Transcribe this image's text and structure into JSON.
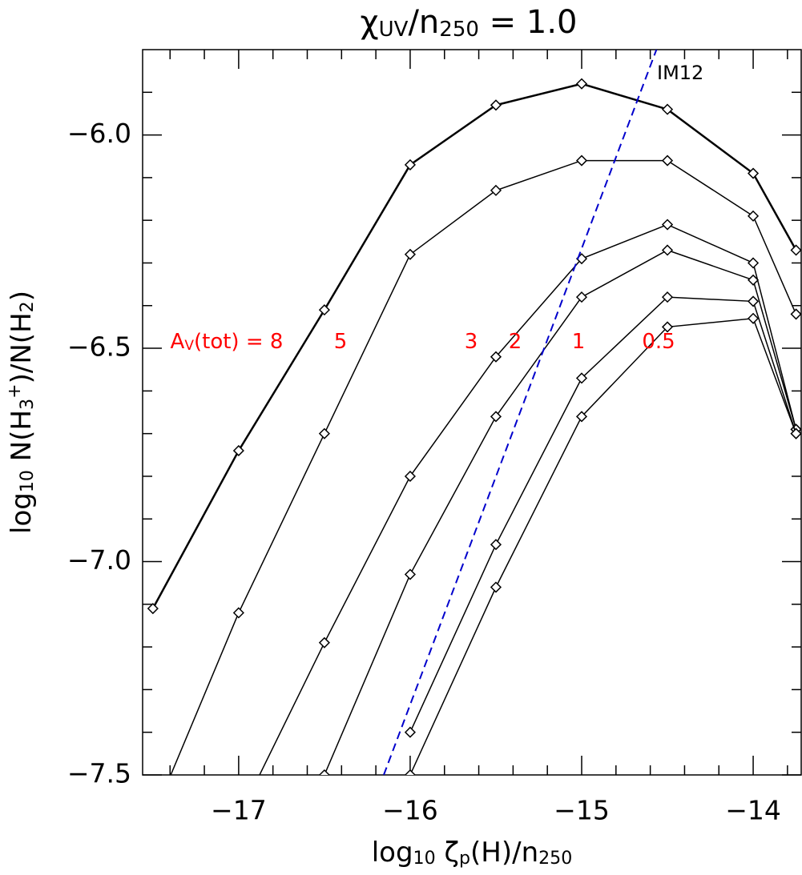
{
  "chart_data": {
    "type": "line",
    "title": [
      {
        "text": "χ"
      },
      {
        "text": "UV",
        "sub": true
      },
      {
        "text": "/n"
      },
      {
        "text": "250",
        "sub": true
      },
      {
        "text": "  =   1.0"
      }
    ],
    "xlabel": [
      {
        "text": "log"
      },
      {
        "text": "10",
        "sub": true
      },
      {
        "text": " ζ"
      },
      {
        "text": "p",
        "sub": true
      },
      {
        "text": "(H)/n"
      },
      {
        "text": "250",
        "sub": true
      }
    ],
    "ylabel": [
      {
        "text": "log"
      },
      {
        "text": "10",
        "sub": true
      },
      {
        "text": " N(H"
      },
      {
        "text": "3",
        "sub": true
      },
      {
        "text": "+",
        "sup": true
      },
      {
        "text": ")/N(H"
      },
      {
        "text": "2",
        "sub": true
      },
      {
        "text": ")"
      }
    ],
    "x": [
      -17.5,
      -17,
      -16.5,
      -16,
      -15.5,
      -15,
      -14.5,
      -14,
      -13.75
    ],
    "series": [
      {
        "color": "#000000",
        "values": [
          -7.11,
          -6.74,
          -6.41,
          -6.07,
          -5.93,
          -5.88,
          -5.94,
          -6.09,
          -6.27
        ]
      },
      {
        "color": "#000000",
        "values": [
          -7.6,
          -7.12,
          -6.7,
          -6.28,
          -6.13,
          -6.06,
          -6.06,
          -6.19,
          -6.42
        ]
      },
      {
        "color": "#000000",
        "values": [
          null,
          -7.6,
          -7.19,
          -6.8,
          -6.52,
          -6.29,
          -6.21,
          -6.3,
          -6.69
        ]
      },
      {
        "color": "#000000",
        "values": [
          null,
          null,
          -7.5,
          -7.03,
          -6.66,
          -6.38,
          -6.27,
          -6.34,
          -6.69
        ]
      },
      {
        "color": "#000000",
        "values": [
          null,
          null,
          null,
          -7.4,
          -6.96,
          -6.57,
          -6.38,
          -6.39,
          -6.7
        ]
      },
      {
        "color": "#000000",
        "values": [
          null,
          null,
          null,
          -7.5,
          -7.06,
          -6.66,
          -6.45,
          -6.43,
          -6.7
        ]
      }
    ],
    "reference_line": {
      "label": "IM12",
      "color": "#0000cc",
      "x": [
        -16.154,
        -14.564
      ],
      "values": [
        -7.5,
        -5.8
      ]
    },
    "annotations": [
      {
        "text": "A",
        "sub": "V",
        "rest": "(tot)  =  8"
      },
      {
        "text": "5"
      },
      {
        "text": "3"
      },
      {
        "text": "2"
      },
      {
        "text": "1"
      },
      {
        "text": "0.5"
      }
    ],
    "annotation_color": "#ff0000",
    "xlim": [
      -17.56,
      -13.72
    ],
    "ylim": [
      -7.5,
      -5.8
    ],
    "xticks": [
      {
        "value": -17,
        "label": "−17"
      },
      {
        "value": -16,
        "label": "−16"
      },
      {
        "value": -15,
        "label": "−15"
      },
      {
        "value": -14,
        "label": "−14"
      }
    ],
    "yticks": [
      {
        "value": -7.5,
        "label": "−7.5"
      },
      {
        "value": -7,
        "label": "−7.0"
      },
      {
        "value": -6.5,
        "label": "−6.5"
      },
      {
        "value": -6,
        "label": "−6.0"
      }
    ],
    "xminorticks": [
      -17.4,
      -17.2,
      -16.8,
      -16.6,
      -16.4,
      -16.2,
      -15.8,
      -15.6,
      -15.4,
      -15.2,
      -14.8,
      -14.6,
      -14.4,
      -14.2,
      -13.8
    ],
    "yminorticks": [
      -7.4,
      -7.3,
      -7.2,
      -7.1,
      -6.9,
      -6.8,
      -6.7,
      -6.6,
      -6.4,
      -6.3,
      -6.2,
      -6.1,
      -5.9
    ]
  }
}
